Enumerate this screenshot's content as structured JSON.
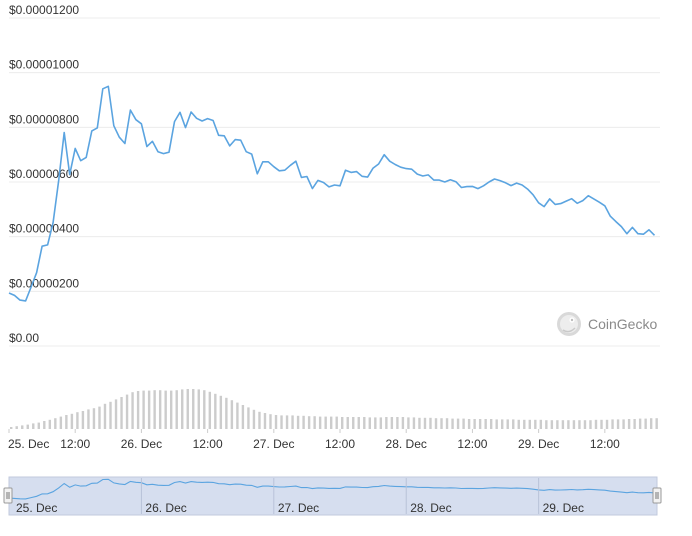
{
  "chart_data": {
    "type": "line",
    "y_tick_labels": [
      "$0.00",
      "$0.00000200",
      "$0.00000400",
      "$0.00000600",
      "$0.00000800",
      "$0.00001000",
      "$0.00001200"
    ],
    "y_tick_values": [
      0,
      2e-06,
      4e-06,
      6e-06,
      8e-06,
      1e-05,
      1.2e-05
    ],
    "ylim": [
      0,
      1.2e-05
    ],
    "x_tick_labels": [
      "25. Dec",
      "12:00",
      "26. Dec",
      "12:00",
      "27. Dec",
      "12:00",
      "28. Dec",
      "12:00",
      "29. Dec",
      "12:00"
    ],
    "x_tick_hours": [
      0,
      12,
      24,
      36,
      48,
      60,
      72,
      84,
      96,
      108
    ],
    "xlim_hours": [
      0,
      118
    ],
    "navigator_labels": [
      "25. Dec",
      "26. Dec",
      "27. Dec",
      "28. Dec",
      "29. Dec"
    ],
    "navigator_hours": [
      0,
      24,
      48,
      72,
      96
    ],
    "line_color": "#5ba4e0",
    "grid": true,
    "series": [
      {
        "x_hours": [
          0,
          1,
          2,
          3,
          4,
          5,
          6,
          7,
          8,
          9,
          10,
          11,
          12,
          13,
          14,
          15,
          16,
          17,
          18,
          19,
          20,
          21,
          22,
          23,
          24,
          25,
          26,
          27,
          28,
          29,
          30,
          31,
          32,
          33,
          34,
          35,
          36,
          37,
          38,
          39,
          40,
          41,
          42,
          43,
          44,
          45,
          46,
          47,
          48,
          49,
          50,
          51,
          52,
          53,
          54,
          55,
          56,
          57,
          58,
          59,
          60,
          61,
          62,
          63,
          64,
          65,
          66,
          67,
          68,
          69,
          70,
          71,
          72,
          73,
          74,
          75,
          76,
          77,
          78,
          79,
          80,
          81,
          82,
          83,
          84,
          85,
          86,
          87,
          88,
          89,
          90,
          91,
          92,
          93,
          94,
          95,
          96,
          97,
          98,
          99,
          100,
          101,
          102,
          103,
          104,
          105,
          106,
          107,
          108,
          109,
          110,
          111,
          112,
          113,
          114,
          115,
          116,
          117
        ],
        "values": [
          1.94e-06,
          1.85e-06,
          1.68e-06,
          1.65e-06,
          2.16e-06,
          2.68e-06,
          3.65e-06,
          3.7e-06,
          4.52e-06,
          6.06e-06,
          7.81e-06,
          6.27e-06,
          7.23e-06,
          6.78e-06,
          6.9e-06,
          7.87e-06,
          7.98e-06,
          9.41e-06,
          9.5e-06,
          8.06e-06,
          7.64e-06,
          7.41e-06,
          8.63e-06,
          8.28e-06,
          8.13e-06,
          7.3e-06,
          7.49e-06,
          7.11e-06,
          7.04e-06,
          7.09e-06,
          8.21e-06,
          8.55e-06,
          7.99e-06,
          8.56e-06,
          8.33e-06,
          8.23e-06,
          8.32e-06,
          8.25e-06,
          7.71e-06,
          7.69e-06,
          7.32e-06,
          7.55e-06,
          7.53e-06,
          7.11e-06,
          7.02e-06,
          6.3e-06,
          6.74e-06,
          6.74e-06,
          6.56e-06,
          6.41e-06,
          6.43e-06,
          6.61e-06,
          6.76e-06,
          6.17e-06,
          6.2e-06,
          5.76e-06,
          6.06e-06,
          5.98e-06,
          5.82e-06,
          5.89e-06,
          5.86e-06,
          6.43e-06,
          6.35e-06,
          6.38e-06,
          6.21e-06,
          6.18e-06,
          6.51e-06,
          6.66e-06,
          7e-06,
          6.76e-06,
          6.64e-06,
          6.54e-06,
          6.49e-06,
          6.47e-06,
          6.29e-06,
          6.22e-06,
          6.26e-06,
          6.07e-06,
          6.07e-06,
          6e-06,
          6.08e-06,
          6.01e-06,
          5.8e-06,
          5.83e-06,
          5.84e-06,
          5.76e-06,
          5.86e-06,
          6e-06,
          6.11e-06,
          6.05e-06,
          5.97e-06,
          5.87e-06,
          5.96e-06,
          5.89e-06,
          5.74e-06,
          5.53e-06,
          5.24e-06,
          5.1e-06,
          5.38e-06,
          5.18e-06,
          5.21e-06,
          5.3e-06,
          5.39e-06,
          5.22e-06,
          5.32e-06,
          5.5e-06,
          5.38e-06,
          5.26e-06,
          5.13e-06,
          4.75e-06,
          4.55e-06,
          4.37e-06,
          4.11e-06,
          4.34e-06,
          4.11e-06,
          4.09e-06,
          4.25e-06,
          4.05e-06
        ]
      }
    ]
  },
  "volume": {
    "color": "#cccccc",
    "values": [
      0.05,
      0.07,
      0.09,
      0.11,
      0.14,
      0.16,
      0.2,
      0.23,
      0.27,
      0.31,
      0.35,
      0.38,
      0.42,
      0.45,
      0.49,
      0.52,
      0.56,
      0.63,
      0.68,
      0.74,
      0.8,
      0.86,
      0.92,
      0.95,
      0.96,
      0.96,
      0.97,
      0.97,
      0.96,
      0.96,
      0.97,
      0.99,
      1.0,
      1.0,
      0.99,
      0.97,
      0.93,
      0.88,
      0.83,
      0.78,
      0.72,
      0.66,
      0.6,
      0.54,
      0.48,
      0.43,
      0.4,
      0.37,
      0.35,
      0.34,
      0.34,
      0.34,
      0.33,
      0.33,
      0.32,
      0.32,
      0.31,
      0.31,
      0.31,
      0.31,
      0.3,
      0.3,
      0.3,
      0.3,
      0.3,
      0.29,
      0.29,
      0.29,
      0.3,
      0.3,
      0.3,
      0.3,
      0.29,
      0.29,
      0.28,
      0.28,
      0.28,
      0.27,
      0.27,
      0.27,
      0.26,
      0.26,
      0.26,
      0.25,
      0.25,
      0.25,
      0.25,
      0.25,
      0.24,
      0.24,
      0.24,
      0.24,
      0.23,
      0.23,
      0.23,
      0.23,
      0.23,
      0.22,
      0.22,
      0.22,
      0.22,
      0.22,
      0.22,
      0.22,
      0.22,
      0.22,
      0.23,
      0.23,
      0.23,
      0.24,
      0.24,
      0.24,
      0.25,
      0.25,
      0.26,
      0.26,
      0.27,
      0.27
    ]
  },
  "brand": {
    "name": "CoinGecko"
  }
}
